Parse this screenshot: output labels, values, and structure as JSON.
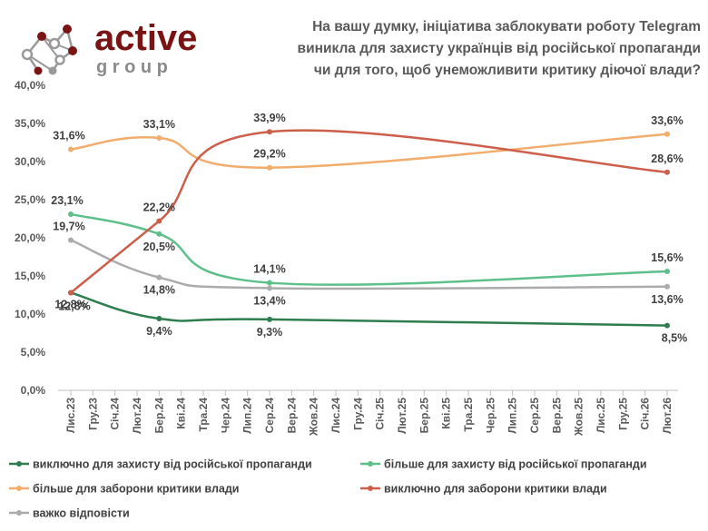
{
  "logo": {
    "word": "active",
    "sub": "g r o u p",
    "colors": {
      "dark": "#8a8a8a",
      "accent": "#7a1414"
    }
  },
  "header": {
    "title_lines": [
      "На вашу думку, ініціатива заблокувати роботу Telegram",
      "виникла для захисту українців від російської пропаганди",
      "чи для того, щоб унеможливити критику діючої влади?"
    ]
  },
  "chart_data": {
    "type": "line",
    "title": "На вашу думку, ініціатива заблокувати роботу Telegram виникла для захисту українців від російської пропаганди чи для того, щоб унеможливити критику діючої влади?",
    "categories": [
      "Лис.23",
      "Гру.23",
      "Січ.24",
      "Лют.24",
      "Бер.24",
      "Кві.24",
      "Тра.24",
      "Чер.24",
      "Лип.24",
      "Сер.24",
      "Вер.24",
      "Жов.24",
      "Лис.24",
      "Гру.24",
      "Січ.25",
      "Лют.25",
      "Бер.25",
      "Кві.25",
      "Тра.25",
      "Чер.25",
      "Лип.25",
      "Сер.25",
      "Вер.25",
      "Жов.25",
      "Лис.25",
      "Гру.25",
      "Січ.26",
      "Лют.26"
    ],
    "y_ticks": [
      "0,0%",
      "5,0%",
      "10,0%",
      "15,0%",
      "20,0%",
      "25,0%",
      "30,0%",
      "35,0%",
      "40,0%"
    ],
    "ylim": [
      0,
      40
    ],
    "grid": false,
    "legend_position": "bottom",
    "series": [
      {
        "name": "виключно для захисту від російської пропаганди",
        "color": "#2e7d4f",
        "points": [
          {
            "x": 0,
            "y": 12.8,
            "label": "12,8%"
          },
          {
            "x": 4,
            "y": 9.4,
            "label": "9,4%"
          },
          {
            "x": 9,
            "y": 9.3,
            "label": "9,3%"
          },
          {
            "x": 27,
            "y": 8.5,
            "label": "8,5%"
          }
        ]
      },
      {
        "name": "більше для захисту від російської пропаганди",
        "color": "#5dc08a",
        "points": [
          {
            "x": 0,
            "y": 23.1,
            "label": "23,1%"
          },
          {
            "x": 4,
            "y": 20.5,
            "label": "20,5%"
          },
          {
            "x": 9,
            "y": 14.1,
            "label": "14,1%"
          },
          {
            "x": 27,
            "y": 15.6,
            "label": "15,6%"
          }
        ]
      },
      {
        "name": "більше для заборони критики влади",
        "color": "#f2ac6b",
        "points": [
          {
            "x": 0,
            "y": 31.6,
            "label": "31,6%"
          },
          {
            "x": 4,
            "y": 33.1,
            "label": "33,1%"
          },
          {
            "x": 9,
            "y": 29.2,
            "label": "29,2%"
          },
          {
            "x": 27,
            "y": 33.6,
            "label": "33,6%"
          }
        ]
      },
      {
        "name": "виключно для заборони критики влади",
        "color": "#cc5e4a",
        "points": [
          {
            "x": 0,
            "y": 12.8,
            "label": "12,8%"
          },
          {
            "x": 4,
            "y": 22.2,
            "label": "22,2%"
          },
          {
            "x": 9,
            "y": 33.9,
            "label": "33,9%"
          },
          {
            "x": 27,
            "y": 28.6,
            "label": "28,6%"
          }
        ]
      },
      {
        "name": "важко відповісти",
        "color": "#ababab",
        "points": [
          {
            "x": 0,
            "y": 19.7,
            "label": "19,7%"
          },
          {
            "x": 4,
            "y": 14.8,
            "label": "14,8%"
          },
          {
            "x": 9,
            "y": 13.4,
            "label": "13,4%"
          },
          {
            "x": 27,
            "y": 13.6,
            "label": "13,6%"
          }
        ]
      }
    ]
  }
}
